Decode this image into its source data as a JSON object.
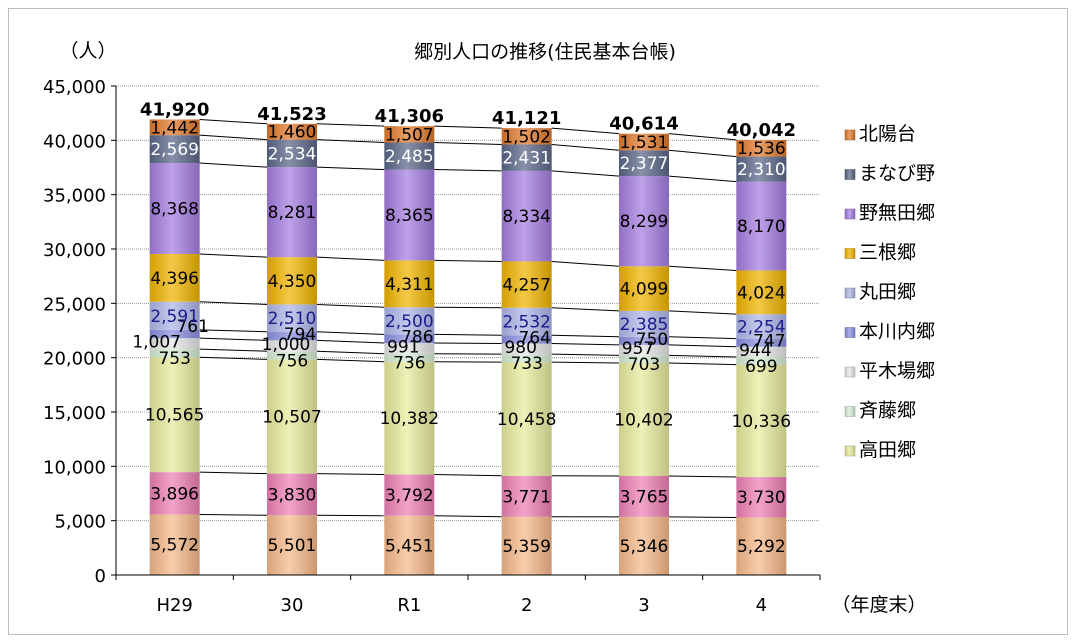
{
  "chart_data": {
    "type": "bar",
    "stacked": true,
    "title": "郷別人口の推移(住民基本台帳)",
    "ylabel": "（人）",
    "xlabel": "（年度末）",
    "ylim": [
      0,
      45000
    ],
    "ytick_step": 5000,
    "ytick_labels": [
      "0",
      "5,000",
      "10,000",
      "15,000",
      "20,000",
      "25,000",
      "30,000",
      "35,000",
      "40,000",
      "45,000"
    ],
    "grid": true,
    "legend_position": "right",
    "categories": [
      "H29",
      "30",
      "R1",
      "2",
      "3",
      "4"
    ],
    "totals": [
      41920,
      41523,
      41306,
      41121,
      40614,
      40042
    ],
    "total_labels": [
      "41,920",
      "41,523",
      "41,306",
      "41,121",
      "40,614",
      "40,042"
    ],
    "series": [
      {
        "name": "",
        "color": "#f6b98a",
        "label_color": "#000000",
        "values": [
          5572,
          5501,
          5451,
          5359,
          5346,
          5292
        ],
        "labels": [
          "5,572",
          "5,501",
          "5,451",
          "5,359",
          "5,346",
          "5,292"
        ]
      },
      {
        "name": "",
        "color": "#ee80b5",
        "label_color": "#000000",
        "values": [
          3896,
          3830,
          3792,
          3771,
          3765,
          3730
        ],
        "labels": [
          "3,896",
          "3,830",
          "3,792",
          "3,771",
          "3,765",
          "3,730"
        ]
      },
      {
        "name": "高田郷",
        "color": "#e8eb9d",
        "label_color": "#000000",
        "values": [
          10565,
          10507,
          10382,
          10458,
          10402,
          10336
        ],
        "labels": [
          "10,565",
          "10,507",
          "10,382",
          "10,458",
          "10,402",
          "10,336"
        ]
      },
      {
        "name": "斉藤郷",
        "color": "#d6ecd5",
        "label_color": "#000000",
        "values": [
          753,
          756,
          736,
          733,
          703,
          699
        ],
        "labels": [
          "753",
          "756",
          "736",
          "733",
          "703",
          "699"
        ]
      },
      {
        "name": "平木場郷",
        "color": "#e6e6e6",
        "label_color": "#000000",
        "values": [
          1007,
          1000,
          991,
          980,
          957,
          944
        ],
        "labels": [
          "1,007",
          "1,000",
          "991",
          "980",
          "957",
          "944"
        ]
      },
      {
        "name": "本川内郷",
        "color": "#8a8fe0",
        "label_color": "#000000",
        "values": [
          761,
          794,
          786,
          764,
          750,
          747
        ],
        "labels": [
          "761",
          "794",
          "786",
          "764",
          "750",
          "747"
        ]
      },
      {
        "name": "丸田郷",
        "color": "#aeb6e8",
        "label_color": "#1a1a8c",
        "values": [
          2591,
          2510,
          2500,
          2532,
          2385,
          2254
        ],
        "labels": [
          "2,591",
          "2,510",
          "2,500",
          "2,532",
          "2,385",
          "2,254"
        ]
      },
      {
        "name": "三根郷",
        "color": "#f0b400",
        "label_color": "#000000",
        "values": [
          4396,
          4350,
          4311,
          4257,
          4099,
          4024
        ],
        "labels": [
          "4,396",
          "4,350",
          "4,311",
          "4,257",
          "4,099",
          "4,024"
        ]
      },
      {
        "name": "野無田郷",
        "color": "#a57de0",
        "label_color": "#000000",
        "values": [
          8368,
          8281,
          8365,
          8334,
          8299,
          8170
        ],
        "labels": [
          "8,368",
          "8,281",
          "8,365",
          "8,334",
          "8,299",
          "8,170"
        ]
      },
      {
        "name": "まなび野",
        "color": "#5a6688",
        "label_color": "#ffffff",
        "values": [
          2569,
          2534,
          2485,
          2431,
          2377,
          2310
        ],
        "labels": [
          "2,569",
          "2,534",
          "2,485",
          "2,431",
          "2,377",
          "2,310"
        ]
      },
      {
        "name": "北陽台",
        "color": "#e27a2c",
        "label_color": "#000000",
        "values": [
          1442,
          1460,
          1507,
          1502,
          1531,
          1536
        ],
        "labels": [
          "1,442",
          "1,460",
          "1,507",
          "1,502",
          "1,531",
          "1,536"
        ]
      }
    ],
    "legend_order": [
      "北陽台",
      "まなび野",
      "野無田郷",
      "三根郷",
      "丸田郷",
      "本川内郷",
      "平木場郷",
      "斉藤郷",
      "高田郷"
    ]
  }
}
